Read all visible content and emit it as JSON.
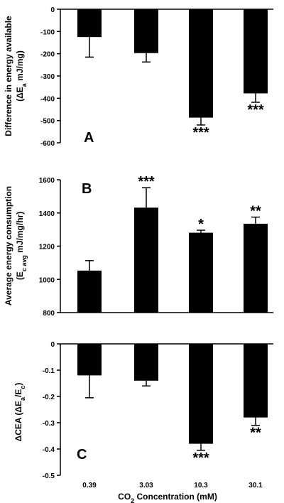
{
  "chart_data": {
    "type": "bar",
    "categories": [
      "0.39",
      "3.03",
      "10.3",
      "30.1"
    ],
    "xlabel": {
      "pre": "CO",
      "sub": "2",
      "post": " Concentration (mM)"
    },
    "panels": [
      {
        "label": "A",
        "ylabel_line1": "Difference in energy available",
        "ylabel_line2": {
          "pre": "(ΔE",
          "sub": "a",
          "post": " mJ/mg)"
        },
        "ylim": [
          -600,
          0
        ],
        "ticks": [
          "0",
          "-100",
          "-200",
          "-300",
          "-400",
          "-500",
          "-600"
        ],
        "tick_values": [
          0,
          -100,
          -200,
          -300,
          -400,
          -500,
          -600
        ],
        "values": [
          -125,
          -197,
          -487,
          -378
        ],
        "errors": [
          90,
          40,
          33,
          40
        ],
        "significance": [
          "",
          "",
          "***",
          "***"
        ]
      },
      {
        "label": "B",
        "ylabel_line1": "Average energy consumption",
        "ylabel_line2": {
          "pre": "(E",
          "sub": "c avg",
          "post": " mJ/mg/hr)"
        },
        "ylim": [
          800,
          1600
        ],
        "ticks": [
          "800",
          "1000",
          "1200",
          "1400",
          "1600"
        ],
        "tick_values": [
          800,
          1000,
          1200,
          1400,
          1600
        ],
        "values": [
          1053,
          1432,
          1281,
          1335
        ],
        "errors": [
          60,
          120,
          15,
          40
        ],
        "significance": [
          "",
          "***",
          "*",
          "**"
        ]
      },
      {
        "label": "C",
        "ylabel_line1": {
          "pre": "ΔCEA (ΔE",
          "sub1": "a",
          "mid": "/E",
          "sub2": "c",
          "post": ")"
        },
        "ylim": [
          -0.5,
          0
        ],
        "ticks": [
          "0",
          "-0.1",
          "-0.2",
          "-0.3",
          "-0.4",
          "-0.5"
        ],
        "tick_values": [
          0,
          -0.1,
          -0.2,
          -0.3,
          -0.4,
          -0.5
        ],
        "values": [
          -0.12,
          -0.14,
          -0.38,
          -0.28
        ],
        "errors": [
          0.085,
          0.02,
          0.025,
          0.03
        ],
        "significance": [
          "",
          "",
          "***",
          "**"
        ]
      }
    ]
  }
}
